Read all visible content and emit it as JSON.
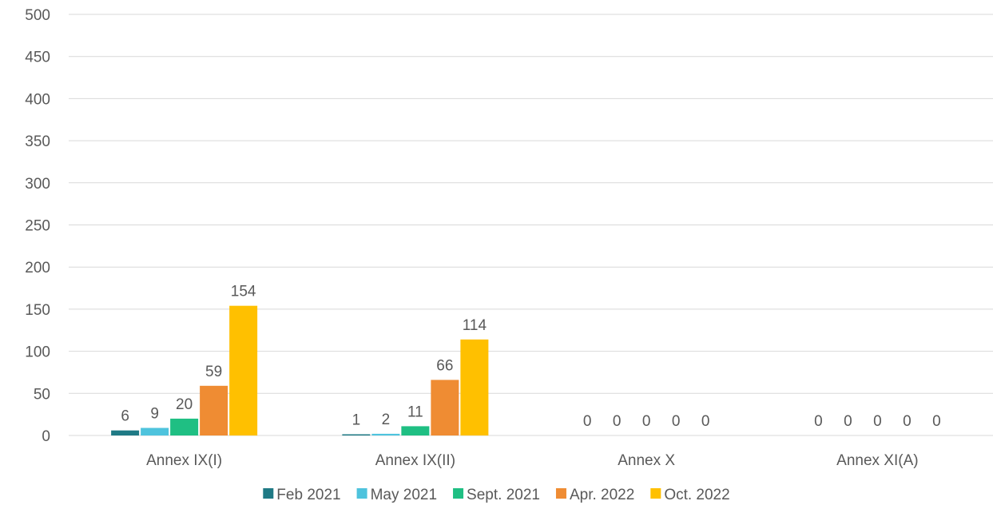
{
  "chart_data": {
    "type": "bar",
    "title": "",
    "xlabel": "",
    "ylabel": "",
    "categories": [
      "Annex IX(I)",
      "Annex IX(II)",
      "Annex X",
      "Annex XI(A)"
    ],
    "series": [
      {
        "name": "Feb 2021",
        "color": "#1f7a85",
        "values": [
          6,
          1,
          0,
          0
        ]
      },
      {
        "name": "May 2021",
        "color": "#4ec3dd",
        "values": [
          9,
          2,
          0,
          0
        ]
      },
      {
        "name": "Sept. 2021",
        "color": "#1fbf83",
        "values": [
          20,
          11,
          0,
          0
        ]
      },
      {
        "name": "Apr. 2022",
        "color": "#ef8c33",
        "values": [
          59,
          66,
          0,
          0
        ]
      },
      {
        "name": "Oct. 2022",
        "color": "#ffc000",
        "values": [
          154,
          114,
          0,
          0
        ]
      }
    ],
    "ylim": [
      0,
      500
    ],
    "yticks": [
      0,
      50,
      100,
      150,
      200,
      250,
      300,
      350,
      400,
      450,
      500
    ],
    "grid": true,
    "data_labels": true,
    "legend_position": "bottom"
  }
}
